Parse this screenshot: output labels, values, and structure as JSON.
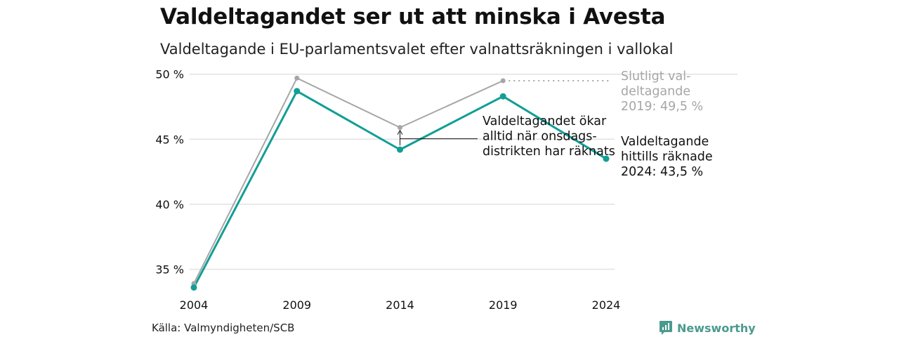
{
  "title": "Valdeltagandet ser ut att minska i Avesta",
  "subtitle": "Valdeltagande i EU-parlamentsvalet efter valnattsräkningen i vallokal",
  "source": "Källa: Valmyndigheten/SCB",
  "brand": {
    "name": "Newsworthy",
    "icon": "newsworthy-logo-icon"
  },
  "colors": {
    "final": "#a6a6a6",
    "counted": "#119e95",
    "grid": "#e2e2e2",
    "brand": "#4b9a8f"
  },
  "chart_data": {
    "type": "line",
    "x": [
      2004,
      2009,
      2014,
      2019,
      2024
    ],
    "x_tick_labels": [
      "2004",
      "2009",
      "2014",
      "2019",
      "2024"
    ],
    "y_ticks": [
      35,
      40,
      45,
      50
    ],
    "y_tick_labels": [
      "35 %",
      "40 %",
      "45 %",
      "50 %"
    ],
    "ylim": [
      33.3,
      50.2
    ],
    "grid": true,
    "series": [
      {
        "key": "final",
        "values": [
          33.9,
          49.7,
          45.9,
          49.5,
          null
        ]
      },
      {
        "key": "counted",
        "values": [
          33.6,
          48.7,
          44.2,
          48.3,
          43.5
        ]
      }
    ],
    "annotations": {
      "final_label": [
        "Slutligt val-",
        "deltagande",
        "2019: 49,5 %"
      ],
      "counted_label": [
        "Valdeltagande",
        "hittills räknade",
        "2024: 43,5 %"
      ],
      "note": [
        "Valdeltagandet ökar",
        "alltid när onsdags-",
        "distrikten har räknats"
      ]
    }
  }
}
